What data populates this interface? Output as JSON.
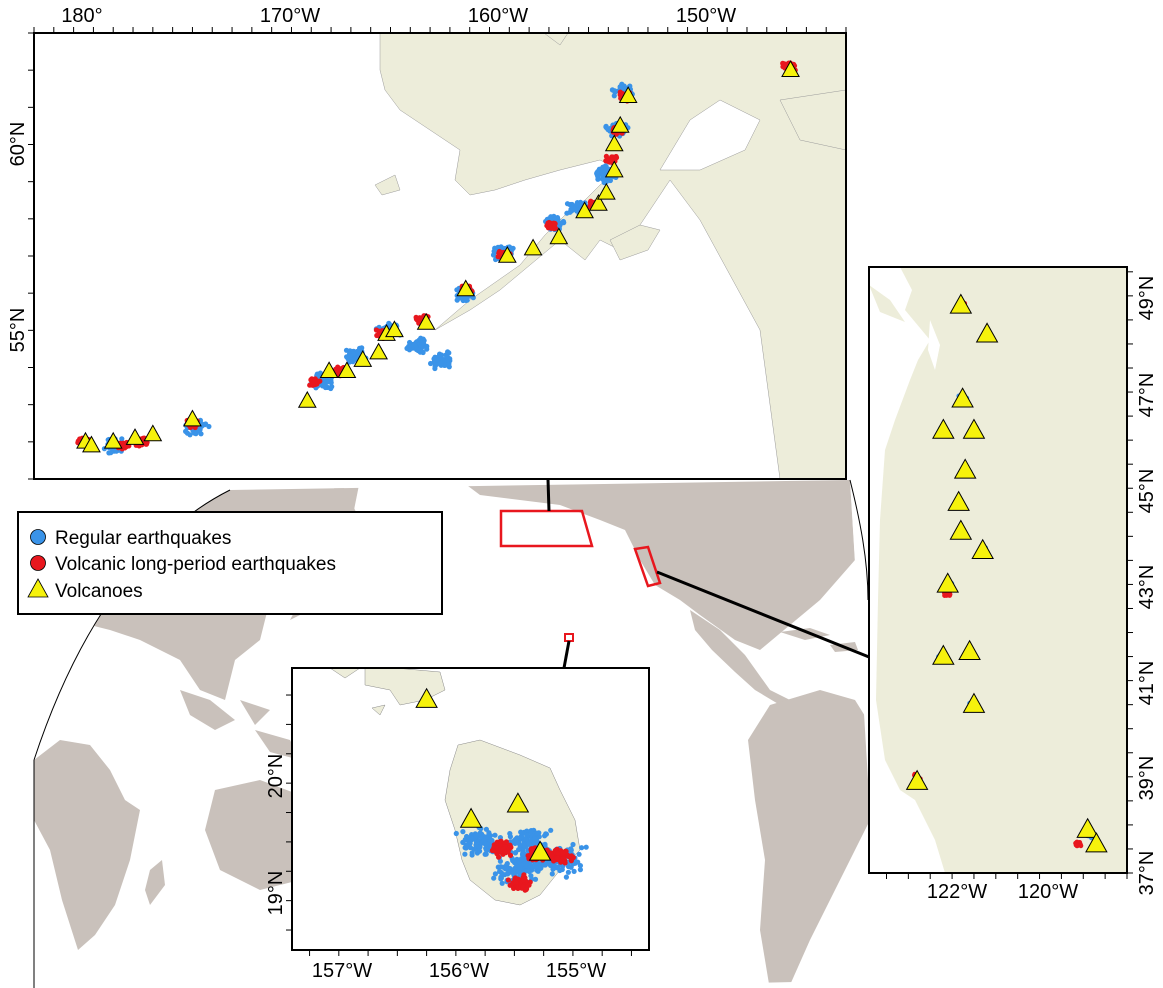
{
  "colors": {
    "land": "#c9c1bb",
    "inset_land": "#ededda",
    "regular": "#3a93e8",
    "volcanic": "#e8171e",
    "volcano": "#f6f20c",
    "frame": "#000000",
    "region_box": "#e8171e"
  },
  "legend": {
    "items": [
      {
        "label": "Regular earthquakes",
        "symbol": "circle",
        "color": "#3a93e8"
      },
      {
        "label": "Volcanic long-period earthquakes",
        "symbol": "circle",
        "color": "#e8171e"
      },
      {
        "label": "Volcanoes",
        "symbol": "triangle",
        "color": "#f6f20c"
      }
    ]
  },
  "insets": {
    "alaska": {
      "x_ticks": [
        "180°",
        "170°W",
        "160°W",
        "150°W"
      ],
      "y_ticks": [
        "60°N",
        "55°N"
      ],
      "lon_range": [
        178,
        219
      ],
      "lat_range": [
        51,
        63
      ],
      "volcanoes": [
        [
          180.6,
          52.0
        ],
        [
          180.9,
          51.9
        ],
        [
          182.0,
          52.0
        ],
        [
          183.1,
          52.1
        ],
        [
          184.0,
          52.2
        ],
        [
          186.0,
          52.6
        ],
        [
          191.8,
          53.1
        ],
        [
          192.9,
          53.9
        ],
        [
          193.8,
          53.9
        ],
        [
          194.6,
          54.2
        ],
        [
          195.4,
          54.4
        ],
        [
          195.8,
          54.9
        ],
        [
          196.2,
          55.0
        ],
        [
          197.8,
          55.2
        ],
        [
          199.8,
          56.1
        ],
        [
          201.9,
          57.0
        ],
        [
          203.2,
          57.2
        ],
        [
          204.5,
          57.5
        ],
        [
          205.8,
          58.2
        ],
        [
          206.5,
          58.4
        ],
        [
          206.9,
          58.7
        ],
        [
          207.3,
          59.3
        ],
        [
          207.3,
          60.0
        ],
        [
          207.6,
          60.5
        ],
        [
          208.0,
          61.3
        ],
        [
          216.2,
          62.0
        ]
      ],
      "regular_clusters": [
        [
          182,
          51.9
        ],
        [
          186.2,
          52.4
        ],
        [
          192.5,
          53.6
        ],
        [
          194.2,
          54.3
        ],
        [
          195.9,
          55.0
        ],
        [
          197.4,
          54.6
        ],
        [
          198.6,
          54.2
        ],
        [
          199.7,
          56.0
        ],
        [
          201.6,
          57.1
        ],
        [
          204.3,
          57.9
        ],
        [
          205.5,
          58.3
        ],
        [
          206.9,
          59.2
        ],
        [
          207.4,
          60.4
        ],
        [
          207.8,
          61.4
        ]
      ],
      "volcanic_clusters": [
        [
          180.5,
          52.0
        ],
        [
          182.5,
          51.9
        ],
        [
          183.5,
          52.0
        ],
        [
          186,
          52.5
        ],
        [
          192.2,
          53.6
        ],
        [
          193.5,
          53.9
        ],
        [
          195.6,
          54.9
        ],
        [
          197.6,
          55.3
        ],
        [
          199.8,
          56.1
        ],
        [
          201.7,
          57.0
        ],
        [
          204.1,
          57.8
        ],
        [
          206.3,
          58.4
        ],
        [
          207.2,
          59.6
        ],
        [
          207.4,
          60.4
        ],
        [
          207.8,
          61.3
        ],
        [
          216.1,
          62.1
        ]
      ]
    },
    "cascades": {
      "x_ticks": [
        "122°W",
        "120°W"
      ],
      "y_ticks": [
        "49°N",
        "47°N",
        "45°N",
        "43°N",
        "41°N",
        "39°N",
        "37°N"
      ],
      "lon_range": [
        -123.9,
        -118.0
      ],
      "lat_range": [
        37.0,
        49.6
      ],
      "volcanoes": [
        [
          -121.8,
          48.8
        ],
        [
          -121.2,
          48.2
        ],
        [
          -121.76,
          46.85
        ],
        [
          -122.2,
          46.2
        ],
        [
          -121.5,
          46.2
        ],
        [
          -121.7,
          45.37
        ],
        [
          -121.85,
          44.7
        ],
        [
          -121.8,
          44.1
        ],
        [
          -121.3,
          43.7
        ],
        [
          -122.1,
          43.0
        ],
        [
          -122.2,
          41.5
        ],
        [
          -121.6,
          41.6
        ],
        [
          -121.5,
          40.5
        ],
        [
          -122.8,
          38.9
        ],
        [
          -118.9,
          37.9
        ],
        [
          -118.7,
          37.6
        ]
      ],
      "regular_clusters": [
        [
          -121.8,
          48.8
        ],
        [
          -121.2,
          48.2
        ],
        [
          -121.76,
          46.85
        ],
        [
          -122.2,
          46.2
        ],
        [
          -121.5,
          46.2
        ],
        [
          -121.7,
          45.37
        ],
        [
          -121.8,
          44.1
        ],
        [
          -121.3,
          43.7
        ],
        [
          -122.1,
          43.0
        ],
        [
          -122.2,
          41.5
        ],
        [
          -121.5,
          40.5
        ],
        [
          -122.8,
          38.9
        ],
        [
          -118.9,
          37.8
        ]
      ],
      "volcanic_clusters": [
        [
          -121.8,
          48.8
        ],
        [
          -121.2,
          48.2
        ],
        [
          -121.76,
          46.85
        ],
        [
          -122.2,
          46.2
        ],
        [
          -121.7,
          45.37
        ],
        [
          -121.8,
          44.1
        ],
        [
          -121.3,
          43.7
        ],
        [
          -122.1,
          42.8
        ],
        [
          -122.2,
          41.5
        ],
        [
          -121.6,
          41.6
        ],
        [
          -121.5,
          40.5
        ],
        [
          -122.8,
          39.0
        ],
        [
          -119.1,
          37.6
        ]
      ]
    },
    "hawaii": {
      "x_ticks": [
        "157°W",
        "156°W",
        "155°W"
      ],
      "y_ticks": [
        "20°N",
        "19°N"
      ],
      "lon_range": [
        -157.4,
        -154.35
      ],
      "lat_range": [
        18.58,
        20.98
      ],
      "volcanoes": [
        [
          -156.25,
          20.71
        ],
        [
          -155.87,
          19.69
        ],
        [
          -155.47,
          19.82
        ],
        [
          -155.28,
          19.41
        ]
      ],
      "regular_clusters": [
        [
          -155.4,
          19.5
        ],
        [
          -155.3,
          19.35
        ],
        [
          -155.1,
          19.35
        ],
        [
          -155.5,
          19.25
        ],
        [
          -155.8,
          19.5
        ]
      ],
      "volcanic_clusters": [
        [
          -155.3,
          19.4
        ],
        [
          -155.1,
          19.38
        ],
        [
          -155.45,
          19.15
        ],
        [
          -155.6,
          19.45
        ]
      ]
    }
  }
}
